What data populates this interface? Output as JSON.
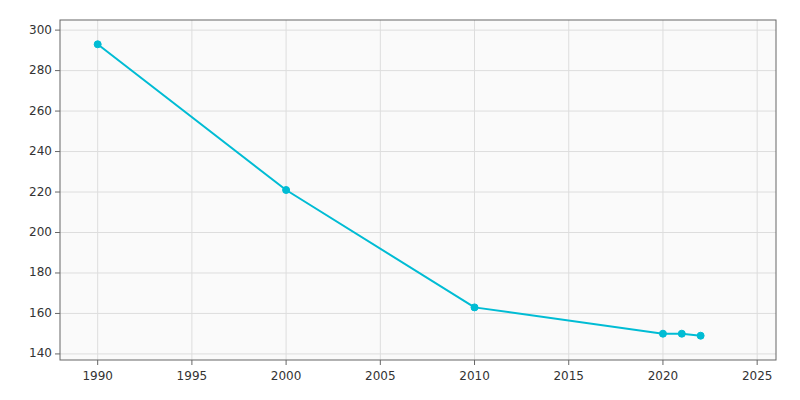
{
  "chart_data": {
    "type": "line",
    "x": [
      1990,
      2000,
      2010,
      2020,
      2021,
      2022
    ],
    "values": [
      293,
      221,
      163,
      150,
      150,
      149
    ],
    "color": "#00BCD4",
    "marker": "circle",
    "xlim": [
      1988,
      2026
    ],
    "ylim": [
      137,
      305
    ],
    "xticks": [
      1990,
      1995,
      2000,
      2005,
      2010,
      2015,
      2020,
      2025
    ],
    "yticks": [
      140,
      160,
      180,
      200,
      220,
      240,
      260,
      280,
      300
    ],
    "grid": true
  }
}
